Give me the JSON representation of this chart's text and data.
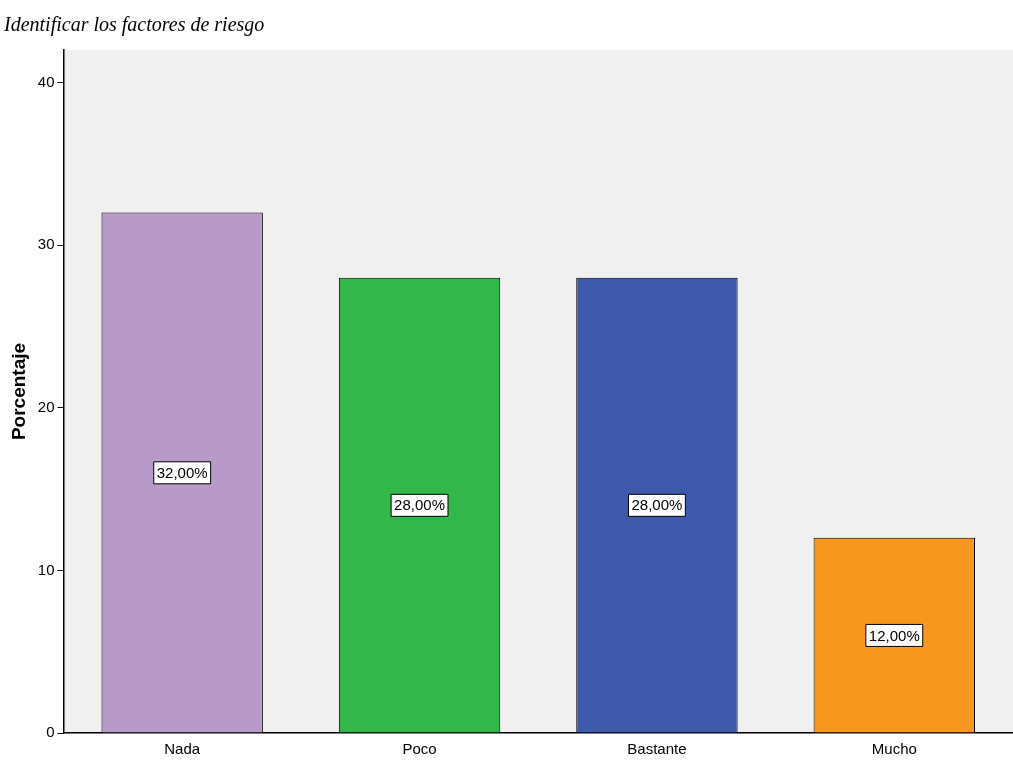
{
  "chart_data": {
    "type": "bar",
    "title": "Identificar los factores de riesgo",
    "ylabel": "Porcentaje",
    "categories": [
      "Nada",
      "Poco",
      "Bastante",
      "Mucho"
    ],
    "values": [
      32,
      28,
      28,
      12
    ],
    "colors": [
      "#b79ac8",
      "#33b74a",
      "#3f59aa",
      "#f7981d"
    ],
    "value_labels": [
      "32,00%",
      "28,00%",
      "28,00%",
      "12,00%"
    ],
    "ylim": [
      0,
      42
    ],
    "yticks": [
      0,
      10,
      20,
      30,
      40
    ],
    "grid": false,
    "legend": false
  }
}
